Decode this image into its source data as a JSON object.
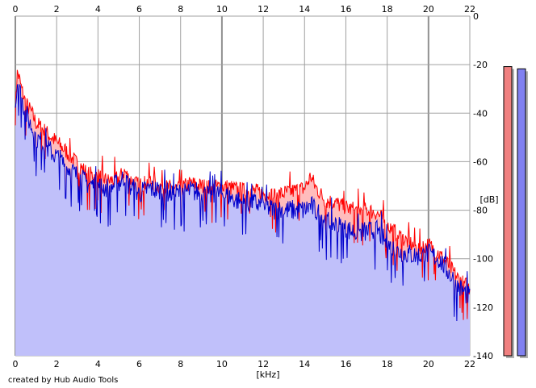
{
  "chart_data": {
    "type": "area",
    "title": "",
    "xlabel": "[kHz]",
    "ylabel": "[dB]",
    "xlim": [
      0,
      22
    ],
    "ylim": [
      -140,
      0
    ],
    "x_ticks": [
      "0",
      "2",
      "4",
      "6",
      "8",
      "10",
      "12",
      "14",
      "16",
      "18",
      "20",
      "22"
    ],
    "y_ticks": [
      "0",
      "-20",
      "-40",
      "-60",
      "-80",
      "-100",
      "-120",
      "-140"
    ],
    "grid": true,
    "colors": {
      "series_a": "#ff0000",
      "series_a_fill": "#ffbcbc",
      "series_b": "#0000cc",
      "series_b_fill": "#c0c0fa",
      "grid": "#a0a0a0",
      "grid_major": "#909090"
    },
    "series": [
      {
        "x": [
          0.05,
          0.1,
          0.2,
          0.3,
          0.5,
          0.8,
          1.0,
          1.5,
          2.0,
          2.5,
          3.0,
          3.5,
          4.0,
          4.5,
          5.0,
          5.3,
          5.5,
          6.0,
          6.5,
          7.0,
          7.5,
          8.0,
          8.5,
          9.0,
          9.5,
          10.0,
          10.5,
          11.0,
          11.5,
          12.0,
          12.5,
          13.0,
          13.5,
          14.0,
          14.3,
          14.5,
          15.0,
          15.5,
          16.0,
          16.5,
          17.0,
          17.5,
          18.0,
          18.5,
          19.0,
          19.5,
          20.0,
          20.5,
          21.0,
          21.5,
          22.0
        ],
        "values": [
          -30,
          -23,
          -26,
          -30,
          -36,
          -40,
          -44,
          -48,
          -52,
          -56,
          -61,
          -65,
          -66,
          -68,
          -67,
          -64,
          -67,
          -70,
          -68,
          -70,
          -71,
          -71,
          -69,
          -70,
          -71,
          -70,
          -71,
          -72,
          -72,
          -73,
          -74,
          -73,
          -72,
          -71,
          -66,
          -70,
          -76,
          -77,
          -79,
          -80,
          -80,
          -81,
          -86,
          -90,
          -93,
          -96,
          -94,
          -98,
          -103,
          -109,
          -112
        ]
      },
      {
        "x": [
          0.05,
          0.1,
          0.2,
          0.3,
          0.5,
          0.8,
          1.0,
          1.5,
          2.0,
          2.5,
          3.0,
          3.5,
          4.0,
          4.5,
          5.0,
          5.3,
          5.5,
          6.0,
          6.5,
          7.0,
          7.5,
          8.0,
          8.5,
          9.0,
          9.5,
          10.0,
          10.5,
          11.0,
          11.5,
          12.0,
          12.5,
          13.0,
          13.5,
          14.0,
          14.3,
          14.5,
          15.0,
          15.5,
          16.0,
          16.5,
          17.0,
          17.5,
          18.0,
          18.5,
          19.0,
          19.5,
          20.0,
          20.5,
          21.0,
          21.5,
          22.0
        ],
        "values": [
          -34,
          -26,
          -30,
          -34,
          -40,
          -46,
          -50,
          -54,
          -58,
          -62,
          -66,
          -69,
          -70,
          -71,
          -69,
          -66,
          -70,
          -73,
          -71,
          -72,
          -73,
          -73,
          -72,
          -73,
          -74,
          -73,
          -75,
          -77,
          -77,
          -78,
          -80,
          -80,
          -80,
          -80,
          -78,
          -80,
          -84,
          -86,
          -88,
          -89,
          -89,
          -88,
          -94,
          -97,
          -98,
          -99,
          -98,
          -100,
          -106,
          -112,
          -116
        ]
      }
    ],
    "meters": [
      {
        "min": -140,
        "max": 0,
        "level": -11
      },
      {
        "min": -140,
        "max": 0,
        "level": -12
      }
    ]
  },
  "credit_text": "created by Hub Audio Tools"
}
